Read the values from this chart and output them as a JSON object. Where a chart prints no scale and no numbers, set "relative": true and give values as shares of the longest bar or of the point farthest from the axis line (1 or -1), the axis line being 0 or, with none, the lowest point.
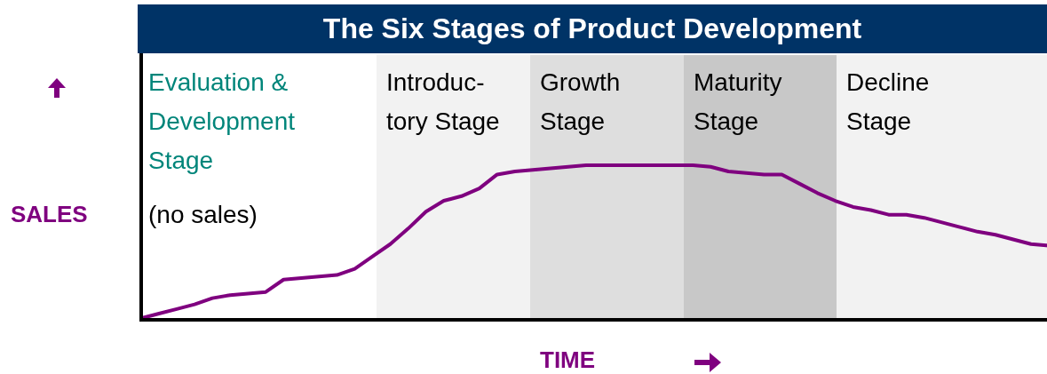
{
  "chart_data": {
    "type": "line",
    "title": "The Six Stages of Product Development",
    "xlabel": "TIME",
    "ylabel": "SALES",
    "relative": true,
    "marker": "none",
    "line_style": "solid",
    "categories": [
      null,
      null,
      null,
      null,
      null,
      null,
      null,
      null,
      null,
      null,
      null,
      null,
      null,
      null,
      null,
      null,
      null,
      null,
      null,
      null,
      null,
      null,
      null,
      null,
      null,
      null,
      null,
      null,
      null,
      null,
      null,
      null,
      null,
      null,
      null,
      null,
      null,
      null,
      null,
      null,
      null,
      null,
      null,
      null,
      null,
      null,
      null,
      null,
      null,
      null,
      null,
      null
    ],
    "series": [
      {
        "color": "#7f007f",
        "values": [
          0.01,
          0.04,
          0.07,
          0.1,
          0.14,
          0.16,
          0.17,
          0.18,
          0.26,
          0.27,
          0.28,
          0.29,
          0.33,
          0.41,
          0.49,
          0.59,
          0.7,
          0.77,
          0.8,
          0.85,
          0.94,
          0.96,
          0.97,
          0.98,
          0.99,
          1,
          1,
          1,
          1,
          1,
          1,
          1,
          0.99,
          0.96,
          0.95,
          0.94,
          0.94,
          0.88,
          0.82,
          0.77,
          0.73,
          0.71,
          0.68,
          0.68,
          0.66,
          0.63,
          0.6,
          0.57,
          0.55,
          0.52,
          0.49,
          0.48
        ]
      }
    ],
    "annotations": [
      "Evaluation & Development Stage",
      "Introduc-\ntory Stage",
      "Growth Stage",
      "Maturity Stage",
      "Decline Stage",
      "(no sales)"
    ]
  }
}
